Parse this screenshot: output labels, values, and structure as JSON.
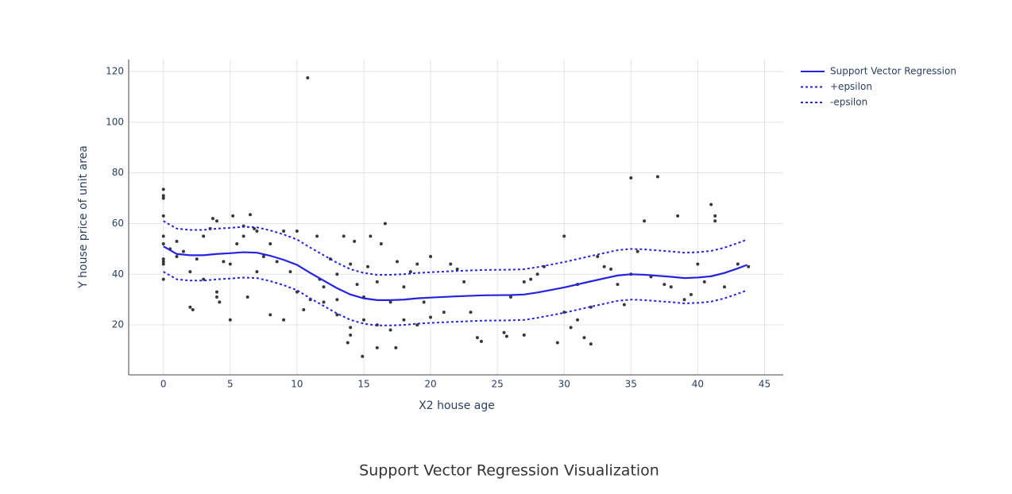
{
  "chart_data": {
    "type": "scatter",
    "caption": "Support Vector Regression Visualization",
    "x_label": "X2 house age",
    "y_label": "Y house price of unit area",
    "xlim": [
      -2.6,
      46.4
    ],
    "ylim": [
      0.3,
      124.7
    ],
    "xticks": [
      0,
      5,
      10,
      15,
      20,
      25,
      30,
      35,
      40,
      45
    ],
    "yticks": [
      20,
      40,
      60,
      80,
      100,
      120
    ],
    "grid": true,
    "legend": "top-right",
    "series": [
      {
        "mode": "markers",
        "color": "#222222",
        "x": [
          0,
          0,
          0,
          0,
          0,
          0,
          0,
          0,
          0,
          0,
          0.5,
          1,
          1,
          1.5,
          2,
          2,
          2.2,
          2.5,
          3,
          3,
          3.5,
          3.7,
          4,
          4,
          4,
          4.2,
          4.5,
          5,
          5,
          5.2,
          5.5,
          6,
          6,
          6.3,
          6.5,
          6.8,
          7,
          7,
          7.5,
          8,
          8,
          8.5,
          9,
          9,
          9.5,
          10,
          10,
          10.5,
          10.8,
          11,
          11.5,
          11.7,
          12,
          12,
          12.5,
          13,
          13,
          13,
          13.5,
          13.8,
          14,
          14,
          14,
          14.3,
          14.5,
          14.9,
          15,
          15,
          15.3,
          15.5,
          16,
          16,
          16,
          16.3,
          16.6,
          17,
          17,
          17.4,
          17.5,
          18,
          18,
          18.5,
          19,
          19,
          19.5,
          20,
          20,
          21,
          21.5,
          22,
          22.5,
          23,
          23.5,
          23.8,
          25.5,
          25.7,
          26,
          27,
          27,
          27.5,
          28,
          28.5,
          29.5,
          30,
          30,
          30.5,
          31,
          31,
          31.5,
          32,
          32,
          32.5,
          33,
          33.5,
          34,
          34.5,
          35,
          35,
          35.5,
          36,
          36.5,
          37,
          37.5,
          38,
          38.5,
          39,
          39.5,
          40,
          40.5,
          41,
          41.3,
          41.3,
          42,
          43,
          43.8
        ],
        "values": [
          73.5,
          70,
          71,
          63,
          55,
          52,
          46,
          45,
          44,
          38,
          50,
          53,
          47,
          49,
          27,
          41,
          26,
          46,
          38,
          55,
          58,
          62,
          61,
          31,
          33,
          29,
          45,
          44,
          22,
          63,
          52,
          55,
          59,
          31,
          63.5,
          58,
          57,
          41,
          47,
          52,
          24,
          45,
          22,
          57,
          41,
          57,
          33,
          26,
          117.5,
          30,
          55,
          38,
          29,
          35,
          46,
          30,
          40,
          24,
          55,
          13,
          19,
          16,
          44,
          53,
          36,
          7.6,
          31,
          22,
          43,
          55,
          20,
          37,
          11,
          52,
          60,
          29,
          18,
          11,
          45,
          22,
          35,
          41,
          20,
          44,
          29,
          47,
          23,
          25,
          44,
          42,
          37,
          25,
          15,
          13.5,
          17,
          15.5,
          31,
          37,
          16,
          38,
          40,
          43,
          13,
          55,
          25,
          19,
          36,
          22,
          15,
          12.5,
          27,
          47,
          43,
          42,
          36,
          28,
          78,
          40,
          49,
          61,
          39,
          78.5,
          36,
          35,
          63,
          30,
          32,
          44,
          37,
          67.5,
          61,
          63,
          35,
          44,
          43
        ]
      },
      {
        "name": "Support Vector Regression",
        "mode": "lines",
        "dash": "solid",
        "color": "#2323e0",
        "x": [
          0,
          1,
          2,
          3,
          4,
          5,
          6,
          7,
          8,
          9,
          10,
          11,
          12,
          13,
          14,
          15,
          16,
          17,
          18,
          19,
          20,
          22,
          24,
          26,
          27,
          28,
          30,
          32,
          34,
          35,
          36,
          38,
          39,
          40,
          41,
          42,
          43,
          43.7
        ],
        "values": [
          51,
          48,
          47.5,
          47.5,
          48,
          48.3,
          48.7,
          48.5,
          47.3,
          45.7,
          43.7,
          40.5,
          37.5,
          34.5,
          32,
          30.5,
          29.8,
          29.8,
          30,
          30.5,
          30.8,
          31.3,
          31.7,
          31.8,
          32,
          32.8,
          34.8,
          37.2,
          39.5,
          40,
          39.8,
          39,
          38.5,
          38.7,
          39.2,
          40.5,
          42.3,
          43.7
        ]
      },
      {
        "name": "+epsilon",
        "mode": "lines",
        "dash": "dot",
        "color": "#2323e0",
        "x": [
          0,
          1,
          2,
          3,
          4,
          5,
          6,
          7,
          8,
          9,
          10,
          11,
          12,
          13,
          14,
          15,
          16,
          17,
          18,
          19,
          20,
          22,
          24,
          26,
          27,
          28,
          30,
          32,
          34,
          35,
          36,
          38,
          39,
          40,
          41,
          42,
          43,
          43.7
        ],
        "values": [
          61,
          58,
          57.5,
          57.5,
          58,
          58.3,
          58.7,
          58.5,
          57.3,
          55.7,
          53.7,
          50.5,
          47.5,
          44.5,
          42,
          40.5,
          39.8,
          39.8,
          40,
          40.5,
          40.8,
          41.3,
          41.7,
          41.8,
          42,
          42.8,
          44.8,
          47.2,
          49.5,
          50,
          49.8,
          49,
          48.5,
          48.7,
          49.2,
          50.5,
          52.3,
          53.7
        ]
      },
      {
        "name": "-epsilon",
        "mode": "lines",
        "dash": "dot",
        "color": "#2323e0",
        "x": [
          0,
          1,
          2,
          3,
          4,
          5,
          6,
          7,
          8,
          9,
          10,
          11,
          12,
          13,
          14,
          15,
          16,
          17,
          18,
          19,
          20,
          22,
          24,
          26,
          27,
          28,
          30,
          32,
          34,
          35,
          36,
          38,
          39,
          40,
          41,
          42,
          43,
          43.7
        ],
        "values": [
          41,
          38,
          37.5,
          37.5,
          38,
          38.3,
          38.7,
          38.5,
          37.3,
          35.7,
          33.7,
          30.5,
          27.5,
          24.5,
          22,
          20.5,
          19.8,
          19.8,
          20,
          20.5,
          20.8,
          21.3,
          21.7,
          21.8,
          22,
          22.8,
          24.8,
          27.2,
          29.5,
          30,
          29.8,
          29,
          28.5,
          28.7,
          29.2,
          30.5,
          32.3,
          33.7
        ]
      }
    ]
  }
}
